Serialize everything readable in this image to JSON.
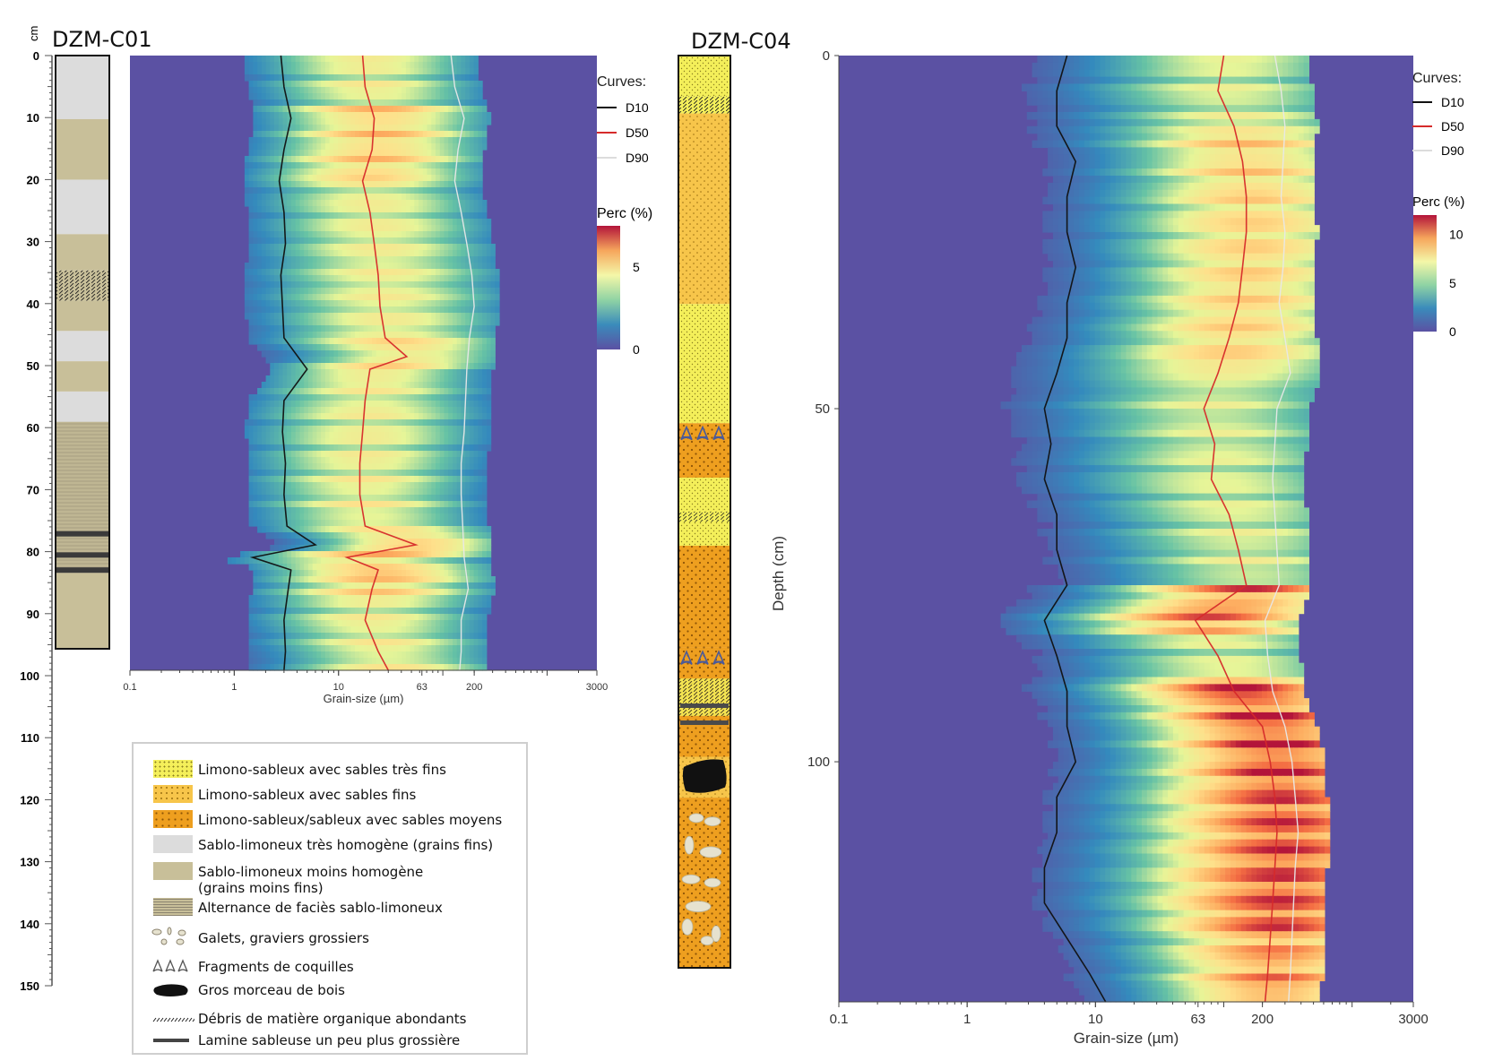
{
  "cores": {
    "c01": {
      "title": "DZM-C01"
    },
    "c04": {
      "title": "DZM-C04"
    }
  },
  "depth_scale": {
    "unit": "cm",
    "ticks": [
      0,
      10,
      20,
      30,
      40,
      50,
      60,
      70,
      80,
      90,
      100,
      110,
      120,
      130,
      140,
      150
    ]
  },
  "c01_strat": [
    {
      "top": 0,
      "bottom": 10.5,
      "facies": "homogeneous"
    },
    {
      "top": 10.5,
      "bottom": 20.5,
      "facies": "less-homogeneous"
    },
    {
      "top": 20.5,
      "bottom": 29.5,
      "facies": "homogeneous"
    },
    {
      "top": 29.5,
      "bottom": 35.5,
      "facies": "less-homogeneous"
    },
    {
      "top": 35.5,
      "bottom": 40.5,
      "facies": "organic"
    },
    {
      "top": 40.5,
      "bottom": 45.5,
      "facies": "less-homogeneous"
    },
    {
      "top": 45.5,
      "bottom": 50.5,
      "facies": "homogeneous"
    },
    {
      "top": 50.5,
      "bottom": 55.5,
      "facies": "less-homogeneous"
    },
    {
      "top": 55.5,
      "bottom": 60.5,
      "facies": "homogeneous"
    },
    {
      "top": 60.5,
      "bottom": 75.5,
      "facies": "alternation"
    },
    {
      "top": 75.5,
      "bottom": 85.5,
      "facies": "laminae"
    },
    {
      "top": 85.5,
      "bottom": 98,
      "facies": "less-homogeneous"
    }
  ],
  "c04_strat": [
    {
      "top": 0,
      "bottom": 6,
      "facies": "very-fine"
    },
    {
      "top": 6,
      "bottom": 8.5,
      "facies": "organic-fine"
    },
    {
      "top": 8.5,
      "bottom": 36.5,
      "facies": "fine"
    },
    {
      "top": 36.5,
      "bottom": 51,
      "facies": "very-fine"
    },
    {
      "top": 51,
      "bottom": 54,
      "facies": "very-fine-shells"
    },
    {
      "top": 54,
      "bottom": 62,
      "facies": "medium"
    },
    {
      "top": 62,
      "bottom": 72,
      "facies": "very-fine-organic"
    },
    {
      "top": 72,
      "bottom": 87,
      "facies": "medium"
    },
    {
      "top": 87,
      "bottom": 103,
      "facies": "medium-shells-laminae"
    },
    {
      "top": 103,
      "bottom": 109,
      "facies": "fine-wood"
    },
    {
      "top": 109,
      "bottom": 134,
      "facies": "medium-pebbles"
    }
  ],
  "chart_data": [
    {
      "type": "heatmap",
      "core": "DZM-C01",
      "xlabel": "Grain-size (µm)",
      "ylabel": "",
      "x_scale": "log",
      "xlim": [
        0.1,
        3000
      ],
      "x_ticks": [
        0.1,
        1,
        10,
        63,
        200,
        3000
      ],
      "ylim": [
        0,
        98
      ],
      "curves_title": "Curves:",
      "series": [
        {
          "name": "D10",
          "color": "#111111",
          "depth": [
            0,
            5,
            10,
            15,
            20,
            25,
            30,
            35,
            40,
            45,
            50,
            55,
            60,
            65,
            70,
            75,
            78,
            80,
            82,
            85,
            90,
            95,
            98
          ],
          "values": [
            2.8,
            3.0,
            3.5,
            3.0,
            2.7,
            3.0,
            3.1,
            2.8,
            2.9,
            3.0,
            5.0,
            3.0,
            2.9,
            3.1,
            3.0,
            3.2,
            6.0,
            1.5,
            3.5,
            3.3,
            3.0,
            3.1,
            3.0
          ]
        },
        {
          "name": "D50",
          "color": "#d62a2a",
          "depth": [
            0,
            5,
            10,
            15,
            20,
            25,
            30,
            35,
            40,
            45,
            48,
            50,
            55,
            60,
            65,
            70,
            75,
            78,
            80,
            82,
            85,
            90,
            95,
            98
          ],
          "values": [
            17,
            18,
            22,
            21,
            17,
            20,
            22,
            24,
            25,
            28,
            45,
            20,
            18,
            17,
            16,
            16,
            18,
            55,
            12,
            24,
            21,
            18,
            24,
            30
          ]
        },
        {
          "name": "D90",
          "color": "#e8e8e8",
          "depth": [
            0,
            5,
            10,
            15,
            20,
            25,
            30,
            35,
            40,
            45,
            50,
            55,
            60,
            65,
            70,
            75,
            80,
            85,
            90,
            95,
            98
          ],
          "values": [
            120,
            130,
            160,
            140,
            130,
            150,
            170,
            190,
            200,
            180,
            170,
            165,
            160,
            150,
            150,
            155,
            160,
            175,
            150,
            150,
            145
          ]
        }
      ],
      "colorbar": {
        "title": "Perc  (%)",
        "ticks": [
          0,
          5
        ],
        "max": 7.5
      }
    },
    {
      "type": "heatmap",
      "core": "DZM-C04",
      "xlabel": "Grain-size (µm)",
      "ylabel": "Depth (cm)",
      "x_scale": "log",
      "xlim": [
        0.1,
        3000
      ],
      "x_ticks": [
        0.1,
        1,
        10,
        63,
        200,
        3000
      ],
      "ylim": [
        0,
        134
      ],
      "y_ticks": [
        0,
        50,
        100
      ],
      "curves_title": "Curves:",
      "series": [
        {
          "name": "D10",
          "color": "#111111",
          "depth": [
            0,
            5,
            10,
            15,
            20,
            25,
            30,
            35,
            40,
            45,
            50,
            55,
            60,
            65,
            70,
            75,
            80,
            85,
            90,
            95,
            100,
            105,
            110,
            115,
            120,
            125,
            130,
            134
          ],
          "values": [
            6,
            5,
            5,
            7,
            6,
            6,
            7,
            6,
            6,
            5,
            4,
            4.5,
            4,
            5,
            5,
            6,
            4,
            5,
            6,
            6,
            7,
            5,
            5,
            4,
            4,
            6,
            9,
            12
          ]
        },
        {
          "name": "D50",
          "color": "#d62a2a",
          "depth": [
            0,
            5,
            10,
            15,
            20,
            25,
            30,
            35,
            40,
            45,
            50,
            55,
            60,
            65,
            70,
            75,
            80,
            85,
            90,
            95,
            100,
            105,
            110,
            115,
            120,
            125,
            130,
            134
          ],
          "values": [
            100,
            90,
            120,
            140,
            150,
            150,
            140,
            130,
            110,
            90,
            70,
            85,
            80,
            110,
            130,
            150,
            60,
            90,
            120,
            200,
            230,
            250,
            260,
            250,
            240,
            230,
            220,
            210
          ]
        },
        {
          "name": "D90",
          "color": "#e8e8e8",
          "depth": [
            0,
            5,
            10,
            15,
            20,
            25,
            30,
            35,
            40,
            45,
            50,
            55,
            60,
            65,
            70,
            75,
            80,
            85,
            90,
            95,
            100,
            105,
            110,
            115,
            120,
            125,
            130,
            134
          ],
          "values": [
            250,
            280,
            300,
            290,
            280,
            300,
            290,
            270,
            300,
            330,
            260,
            250,
            240,
            250,
            260,
            270,
            210,
            220,
            240,
            300,
            340,
            360,
            380,
            360,
            350,
            340,
            330,
            320
          ]
        }
      ],
      "colorbar": {
        "title": "Perc (%)",
        "ticks": [
          0,
          5,
          10
        ],
        "max": 12
      }
    }
  ],
  "legend": {
    "items": [
      {
        "label": "Limono-sableux avec sables très fins",
        "swatch": "very-fine"
      },
      {
        "label": "Limono-sableux avec sables fins",
        "swatch": "fine"
      },
      {
        "label": "Limono-sableux/sableux avec sables moyens",
        "swatch": "medium"
      },
      {
        "label": "Sablo-limoneux très homogène (grains fins)",
        "swatch": "homogeneous"
      },
      {
        "label": "Sablo-limoneux moins homogène",
        "label2": "(grains moins fins)",
        "swatch": "less-homogeneous"
      },
      {
        "label": "Alternance de faciès sablo-limoneux",
        "swatch": "alternation"
      },
      {
        "label": "Galets, graviers grossiers",
        "swatch": "pebbles"
      },
      {
        "label": "Fragments de coquilles",
        "swatch": "shells"
      },
      {
        "label": "Gros morceau de bois",
        "swatch": "wood"
      },
      {
        "label": "Débris de matière organique abondants",
        "swatch": "organic"
      },
      {
        "label": "Lamine sableuse un peu plus grossière",
        "swatch": "lamina"
      }
    ]
  },
  "colors": {
    "very_fine": "#f4ef5a",
    "fine": "#f7c54a",
    "medium": "#ee9f1f",
    "homogeneous": "#dcdcdc",
    "less_homogeneous": "#c8bf99",
    "heat_low": "#5b51a3"
  }
}
